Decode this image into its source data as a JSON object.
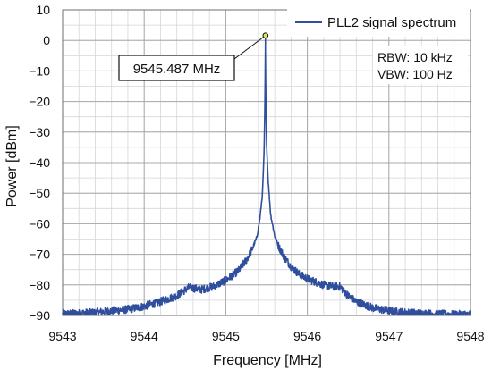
{
  "chart_data": {
    "type": "line",
    "xlabel": "Frequency [MHz]",
    "ylabel": "Power [dBm]",
    "xlim": [
      9543,
      9548
    ],
    "ylim": [
      -90,
      10
    ],
    "x_ticks": [
      9543,
      9544,
      9545,
      9546,
      9547,
      9548
    ],
    "y_ticks": [
      10,
      0,
      -10,
      -20,
      -30,
      -40,
      -50,
      -60,
      -70,
      -80,
      -90
    ],
    "y_tick_labels": [
      "10",
      "0",
      "−10",
      "−20",
      "−30",
      "−40",
      "−50",
      "−60",
      "−70",
      "−80",
      "−90"
    ],
    "grid": true,
    "minor_grid": true,
    "legend_position": "top-right",
    "series": [
      {
        "name": "PLL2 signal spectrum",
        "color": "#2f4f9e",
        "x": [
          9543.0,
          9543.2,
          9543.4,
          9543.6,
          9543.8,
          9544.0,
          9544.2,
          9544.4,
          9544.55,
          9544.7,
          9544.85,
          9545.0,
          9545.15,
          9545.25,
          9545.32,
          9545.38,
          9545.42,
          9545.45,
          9545.47,
          9545.48,
          9545.487,
          9545.49,
          9545.5,
          9545.52,
          9545.55,
          9545.6,
          9545.65,
          9545.72,
          9545.8,
          9545.9,
          9546.0,
          9546.1,
          9546.2,
          9546.3,
          9546.4,
          9546.5,
          9546.6,
          9546.8,
          9547.0,
          9547.2,
          9547.4,
          9547.6,
          9547.8,
          9548.0
        ],
        "y": [
          -89.5,
          -89.3,
          -89.0,
          -88.5,
          -88.0,
          -87.0,
          -85.5,
          -83.5,
          -80.8,
          -81.5,
          -80.5,
          -78.5,
          -75.5,
          -72.0,
          -68.5,
          -64.5,
          -58.0,
          -50.0,
          -36.0,
          -20.0,
          1.6,
          -18.0,
          -34.0,
          -46.0,
          -57.0,
          -64.0,
          -67.5,
          -71.0,
          -74.0,
          -76.5,
          -78.0,
          -79.0,
          -80.0,
          -80.5,
          -80.5,
          -83.5,
          -85.5,
          -87.5,
          -88.5,
          -89.0,
          -89.3,
          -89.5,
          -89.7,
          -89.6
        ]
      }
    ],
    "marker": {
      "x": 9545.487,
      "y": 1.6,
      "label": "9545.487 MHz"
    },
    "annotations": [
      "RBW: 10 kHz",
      "VBW: 100 Hz"
    ]
  },
  "colors": {
    "series": "#2f4f9e",
    "marker_fill": "#e6e64a",
    "major_grid": "#a8a8a8",
    "minor_grid": "#d6d6d6",
    "plot_border": "#6e6e6e"
  }
}
